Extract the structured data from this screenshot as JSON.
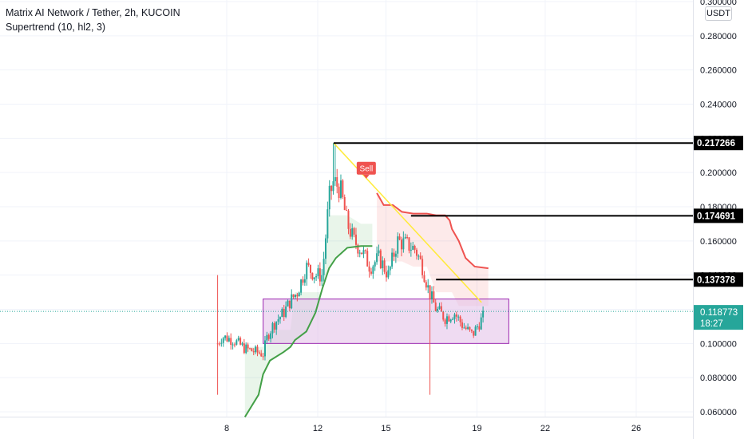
{
  "header": {
    "title": "Matrix AI Network / Tether, 2h, KUCOIN",
    "indicator": "Supertrend (10, hl2, 3)",
    "currency": "USDT"
  },
  "colors": {
    "up": "#26a69a",
    "down": "#ef5350",
    "supertrend_up": "#43a047",
    "supertrend_down": "#ef5350",
    "trendline": "#ffeb3b",
    "box_fill": "#e1bee7",
    "box_border": "#9c27b0",
    "last_price": "#26a69a"
  },
  "chart_data": {
    "type": "candlestick",
    "title": "Matrix AI Network / Tether, 2h, KUCOIN",
    "ylim": [
      0.056,
      0.3
    ],
    "y_ticks": [
      "0.300000",
      "0.280000",
      "0.260000",
      "0.240000",
      "0.220000",
      "0.200000",
      "0.180000",
      "0.160000",
      "0.140000",
      "0.120000",
      "0.100000",
      "0.080000",
      "0.060000"
    ],
    "x_ticks": [
      "8",
      "12",
      "15",
      "19",
      "22",
      "26"
    ],
    "series": [
      {
        "name": "Supertrend",
        "segments": [
          {
            "trend": "up",
            "points": [
              [
                8.8,
                0.057
              ],
              [
                9.4,
                0.07
              ],
              [
                9.6,
                0.082
              ],
              [
                9.9,
                0.09
              ],
              [
                10.5,
                0.095
              ],
              [
                10.8,
                0.098
              ],
              [
                11.0,
                0.102
              ],
              [
                11.5,
                0.107
              ],
              [
                11.9,
                0.118
              ],
              [
                12.2,
                0.132
              ],
              [
                12.5,
                0.144
              ],
              [
                12.8,
                0.15
              ],
              [
                13.3,
                0.156
              ],
              [
                13.9,
                0.157
              ],
              [
                14.4,
                0.157
              ]
            ]
          },
          {
            "trend": "down",
            "points": [
              [
                14.6,
                0.188
              ],
              [
                14.9,
                0.181
              ],
              [
                15.3,
                0.181
              ],
              [
                15.7,
                0.177
              ],
              [
                16.2,
                0.176
              ],
              [
                16.8,
                0.176
              ],
              [
                17.2,
                0.175
              ],
              [
                17.6,
                0.175
              ],
              [
                17.8,
                0.172
              ],
              [
                17.9,
                0.167
              ],
              [
                18.2,
                0.16
              ],
              [
                18.5,
                0.15
              ],
              [
                18.9,
                0.145
              ],
              [
                19.5,
                0.144
              ]
            ]
          }
        ]
      }
    ],
    "candles_summary": {
      "pre_pump_range": [
        0.09,
        0.107
      ],
      "spike_high": 0.14,
      "spike_low": 0.07,
      "peak_high": 0.217266,
      "late_wick_low": 0.07,
      "last": 0.118773
    },
    "price_levels": [
      {
        "value": 0.217266,
        "label": "0.217266",
        "x_start": 12.7
      },
      {
        "value": 0.174691,
        "label": "0.174691",
        "x_start": 16.1
      },
      {
        "value": 0.137378,
        "label": "0.137378",
        "x_start": 17.2
      }
    ],
    "trendline": {
      "from": [
        12.7,
        0.217266
      ],
      "to": [
        19.2,
        0.124
      ]
    },
    "box": {
      "x": [
        9.6,
        20.4
      ],
      "y": [
        0.1,
        0.126
      ]
    },
    "signal": {
      "label": "Sell",
      "x": 14.1,
      "y": 0.196
    },
    "last_price": {
      "value": 0.118773,
      "label": "0.118773",
      "countdown": "18:27"
    }
  }
}
